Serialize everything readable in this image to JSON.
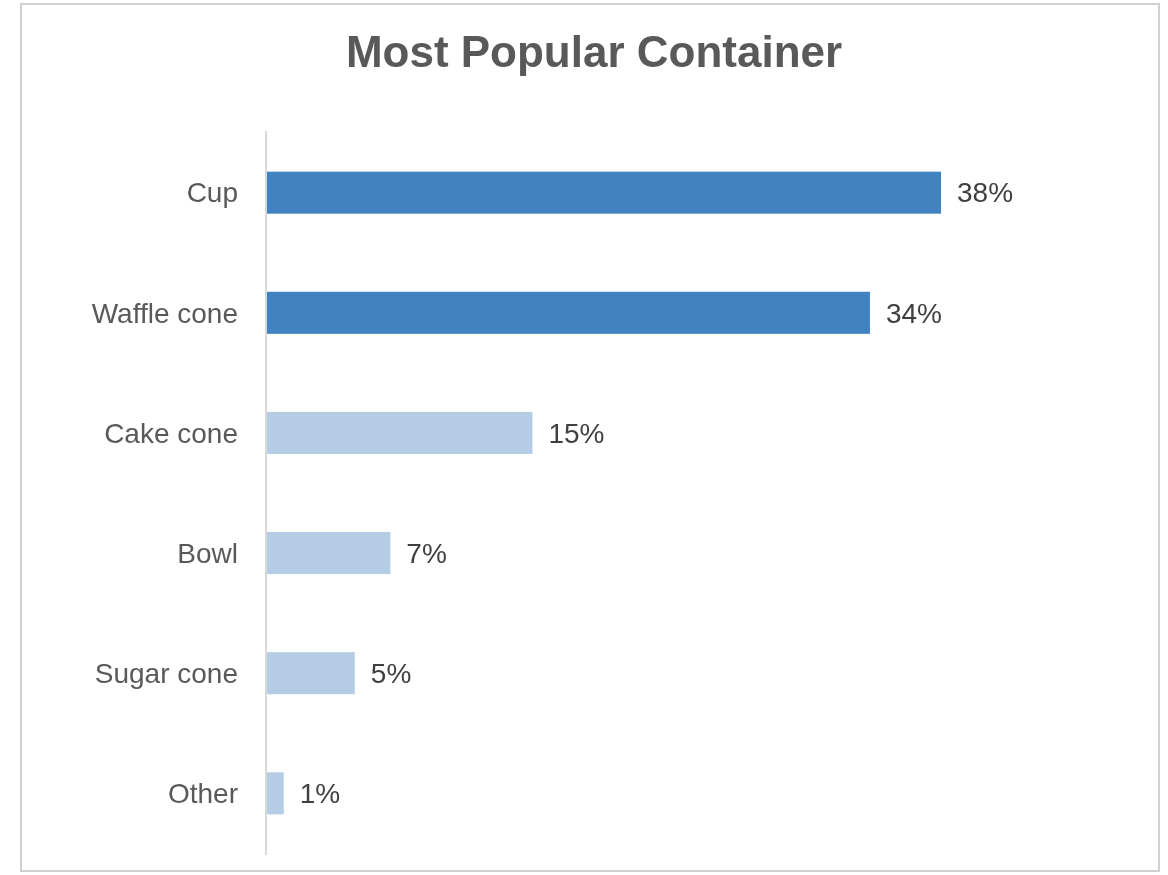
{
  "chart_data": {
    "type": "bar",
    "orientation": "horizontal",
    "title": "Most Popular Container",
    "categories": [
      "Cup",
      "Waffle cone",
      "Cake cone",
      "Bowl",
      "Sugar cone",
      "Other"
    ],
    "values": [
      38,
      34,
      15,
      7,
      5,
      1
    ],
    "colors": [
      "#4083c0",
      "#4083c0",
      "#b4cde4",
      "#b4cde4",
      "#b4cde4",
      "#b4cde4"
    ],
    "value_labels": [
      "38%",
      "34%",
      "15%",
      "7%",
      "5%",
      "1%"
    ]
  }
}
